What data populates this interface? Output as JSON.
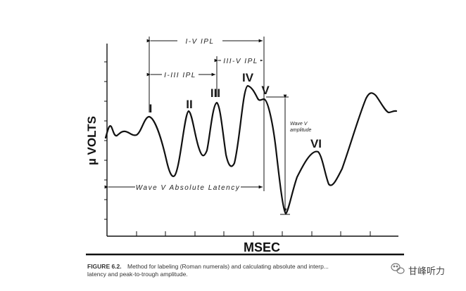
{
  "axis": {
    "y_label": "µ VOLTS",
    "x_label": "MSEC"
  },
  "peaks": [
    "I",
    "II",
    "III",
    "IV",
    "V",
    "VI"
  ],
  "intervals": {
    "i_v": "I-V IPL",
    "i_iii": "I-III IPL",
    "iii_v": "III-V IPL"
  },
  "latency_label": "Wave V Absolute Latency",
  "amplitude_label": {
    "line1": "Wave V",
    "line2": "amplitude"
  },
  "caption": {
    "figure_label": "FIGURE 6.2.",
    "line1": "Method for labeling (Roman numerals) and calculating absolute and interp...",
    "line2": "latency and peak-to-trough amplitude."
  },
  "watermark": {
    "text": "甘峰听力",
    "icon": "wechat-icon"
  }
}
